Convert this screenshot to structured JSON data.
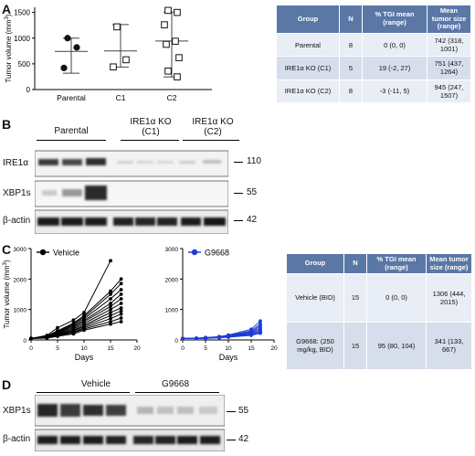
{
  "panels": {
    "A": "A",
    "B": "B",
    "C": "C",
    "D": "D"
  },
  "chart_data": [
    {
      "type": "scatter",
      "panel": "A",
      "ylabel": "Tumor volume (mm3)",
      "ylabel_main": "Tumor volume (mm",
      "ylabel_sup": "3",
      "ylabel_end": ")",
      "ylim": [
        0,
        1600
      ],
      "yticks": [
        "0",
        "500",
        "1000",
        "1500"
      ],
      "categories": [
        "Parental",
        "C1",
        "C2"
      ],
      "series": [
        {
          "category": "Parental",
          "marker": "filled-circle",
          "values": [
            1000,
            820,
            420
          ],
          "mean": 742,
          "error": [
            318,
            1001
          ]
        },
        {
          "category": "C1",
          "marker": "open-square",
          "values": [
            1220,
            580,
            440
          ],
          "mean": 751,
          "error": [
            437,
            1264
          ]
        },
        {
          "category": "C2",
          "marker": "open-square",
          "values": [
            1540,
            1500,
            1260,
            940,
            880,
            620,
            360,
            247
          ],
          "mean": 945,
          "error": [
            247,
            1507
          ]
        }
      ]
    },
    {
      "type": "line",
      "panel": "C-vehicle",
      "legend": "Vehicle",
      "color": "#000000",
      "xlabel": "Days",
      "ylabel_main": "Tumor volume (mm",
      "ylabel_sup": "3",
      "ylabel_end": ")",
      "x": [
        0,
        3,
        5,
        8,
        10,
        15,
        17
      ],
      "xticks": [
        "0",
        "5",
        "10",
        "15",
        "20"
      ],
      "yticks": [
        "0",
        "1000",
        "2000",
        "3000"
      ],
      "ylim": [
        0,
        3000
      ],
      "series": [
        {
          "values": [
            50,
            150,
            400,
            650,
            900,
            2600,
            null
          ]
        },
        {
          "values": [
            50,
            130,
            300,
            550,
            800,
            1600,
            2000
          ]
        },
        {
          "values": [
            50,
            120,
            280,
            520,
            750,
            1500,
            1850
          ]
        },
        {
          "values": [
            50,
            110,
            260,
            480,
            700,
            1350,
            1650
          ]
        },
        {
          "values": [
            50,
            100,
            240,
            440,
            640,
            1200,
            1500
          ]
        },
        {
          "values": [
            50,
            100,
            220,
            400,
            600,
            1100,
            1350
          ]
        },
        {
          "values": [
            50,
            90,
            200,
            360,
            540,
            1000,
            1200
          ]
        },
        {
          "values": [
            50,
            80,
            180,
            320,
            480,
            900,
            1050
          ]
        },
        {
          "values": [
            50,
            80,
            160,
            300,
            440,
            800,
            950
          ]
        },
        {
          "values": [
            50,
            70,
            150,
            260,
            400,
            700,
            850
          ]
        },
        {
          "values": [
            50,
            70,
            140,
            240,
            360,
            600,
            720
          ]
        },
        {
          "values": [
            50,
            60,
            120,
            200,
            320,
            520,
            600
          ]
        }
      ]
    },
    {
      "type": "line",
      "panel": "C-G9668",
      "legend": "G9668",
      "color": "#1f3bd6",
      "xlabel": "Days",
      "x": [
        0,
        3,
        5,
        8,
        10,
        15,
        17
      ],
      "xticks": [
        "0",
        "5",
        "10",
        "15",
        "20"
      ],
      "yticks": [
        "0",
        "1000",
        "2000",
        "3000"
      ],
      "ylim": [
        0,
        3000
      ],
      "series": [
        {
          "values": [
            50,
            60,
            80,
            110,
            160,
            350,
            620
          ]
        },
        {
          "values": [
            50,
            55,
            75,
            100,
            150,
            300,
            520
          ]
        },
        {
          "values": [
            50,
            55,
            70,
            95,
            140,
            270,
            460
          ]
        },
        {
          "values": [
            50,
            50,
            65,
            90,
            130,
            240,
            400
          ]
        },
        {
          "values": [
            50,
            50,
            60,
            85,
            120,
            210,
            350
          ]
        },
        {
          "values": [
            50,
            50,
            60,
            80,
            110,
            190,
            300
          ]
        },
        {
          "values": [
            50,
            45,
            55,
            75,
            100,
            170,
            260
          ]
        },
        {
          "values": [
            50,
            45,
            50,
            70,
            90,
            150,
            220
          ]
        }
      ]
    }
  ],
  "tableA": {
    "headers": [
      "Group",
      "N",
      "% TGI mean (range)",
      "Mean tumor size (range)"
    ],
    "rows": [
      [
        "Parental",
        "8",
        "0 (0, 0)",
        "742 (318, 1001)"
      ],
      [
        "IRE1α KO (C1)",
        "5",
        "19 (-2, 27)",
        "751 (437, 1264)"
      ],
      [
        "IRE1α KO (C2)",
        "8",
        "-3 (-11, 5)",
        "945 (247, 1507)"
      ]
    ]
  },
  "tableC": {
    "headers": [
      "Group",
      "N",
      "% TGI mean (range)",
      "Mean tumor size (range)"
    ],
    "rows": [
      [
        "Vehicle (BID)",
        "15",
        "0 (0, 0)",
        "1306 (444, 2015)"
      ],
      [
        "G9668: (250 mg/kg, BID)",
        "15",
        "95 (80, 104)",
        "341 (133, 667)"
      ]
    ]
  },
  "blotB": {
    "groups": [
      "Parental",
      "IRE1α KO (C1)",
      "IRE1α KO (C2)"
    ],
    "group_line1": [
      "Parental",
      "IRE1α KO",
      "IRE1α KO"
    ],
    "group_line2": [
      "",
      "(C1)",
      "(C2)"
    ],
    "rows": [
      {
        "label": "IRE1α",
        "mw": "110"
      },
      {
        "label": "XBP1s",
        "mw": "55"
      },
      {
        "label": "β-actin",
        "mw": "42"
      }
    ]
  },
  "blotD": {
    "groups": [
      "Vehicle",
      "G9668"
    ],
    "rows": [
      {
        "label": "XBP1s",
        "mw": "55"
      },
      {
        "label": "β-actin",
        "mw": "42"
      }
    ]
  }
}
